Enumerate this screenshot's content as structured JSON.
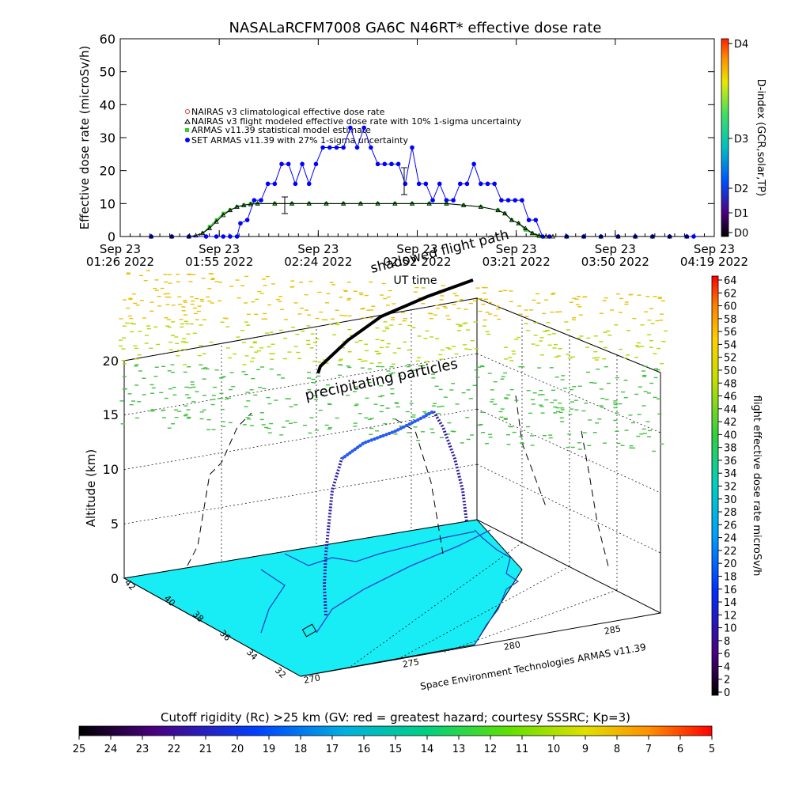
{
  "title": "NASALaRCFM7008  GA6C N46RT* effective dose rate",
  "top_chart": {
    "ylabel": "Effective dose rate (microSv/h)",
    "xlabel": "UT time",
    "y_ticks": [
      "0",
      "10",
      "20",
      "30",
      "40",
      "50",
      "60"
    ],
    "x_ticks": [
      {
        "line1": "Sep 23",
        "line2": "01:26 2022"
      },
      {
        "line1": "Sep 23",
        "line2": "01:55 2022"
      },
      {
        "line1": "Sep 23",
        "line2": "02:24 2022"
      },
      {
        "line1": "Sep 23",
        "line2": "02:52 2022"
      },
      {
        "line1": "Sep 23",
        "line2": "03:21 2022"
      },
      {
        "line1": "Sep 23",
        "line2": "03:50 2022"
      },
      {
        "line1": "Sep 23",
        "line2": "04:19 2022"
      }
    ],
    "legend": [
      "NAIRAS v3 climatological effective dose rate",
      "NAIRAS v3 flight modeled effective dose rate with 10% 1-sigma uncertainty",
      "ARMAS v11.39 statistical model estimate",
      "SET ARMAS v11.39 with 27% 1-sigma uncertainty"
    ],
    "dindex_label": "D-index (GCR,solar,TP)",
    "dindex_ticks": [
      "D0",
      "D1",
      "D2",
      "D3",
      "D4"
    ],
    "annotation": "shadowed flight path"
  },
  "chart_data": [
    {
      "type": "scatter",
      "title": "NASALaRCFM7008  GA6C N46RT* effective dose rate",
      "xlabel": "UT time",
      "ylabel": "Effective dose rate (microSv/h)",
      "ylim": [
        0,
        60
      ],
      "xlim": [
        "01:26",
        "04:19"
      ],
      "x_unit": "minutes after 01:26 UT",
      "series": [
        {
          "name": "SET ARMAS v11.39 with 27% 1-sigma uncertainty",
          "color": "#0000ff",
          "x": [
            9,
            15,
            20,
            25,
            28,
            30,
            32,
            34,
            35,
            37,
            39,
            41,
            43,
            45,
            47,
            49,
            51,
            53,
            55,
            57,
            59,
            61,
            63,
            65,
            67,
            69,
            71,
            73,
            75,
            77,
            79,
            81,
            83,
            85,
            87,
            89,
            91,
            93,
            95,
            97,
            99,
            101,
            103,
            105,
            107,
            109,
            111,
            113,
            115,
            117,
            119,
            121,
            123,
            125,
            130,
            135,
            140,
            145,
            150,
            155,
            160,
            165,
            167
          ],
          "y": [
            0,
            0,
            0,
            0,
            0,
            0,
            0,
            0,
            4,
            5,
            11,
            11,
            16,
            16,
            22,
            22,
            16,
            22,
            16,
            22,
            27,
            27,
            27,
            27,
            33,
            27,
            33,
            27,
            22,
            22,
            22,
            22,
            16,
            27,
            16,
            16,
            11,
            16,
            11,
            11,
            16,
            16,
            22,
            16,
            16,
            16,
            11,
            11,
            11,
            11,
            5,
            5,
            0,
            0,
            0,
            0,
            0,
            0,
            0,
            0,
            0,
            0,
            0
          ]
        },
        {
          "name": "ARMAS v11.39 statistical model estimate",
          "color": "#00c000",
          "x": [
            24,
            26,
            28,
            30,
            32,
            34,
            36,
            38,
            40,
            45,
            50,
            55,
            60,
            65,
            70,
            75,
            80,
            85,
            90,
            95,
            100,
            105,
            110,
            112,
            114,
            116,
            118,
            120,
            122
          ],
          "y": [
            1,
            3,
            5,
            7,
            8,
            9,
            9.5,
            10,
            10,
            10,
            10,
            10,
            10,
            10,
            10,
            10,
            10,
            10,
            10,
            10,
            9.5,
            9,
            8,
            7,
            5,
            4,
            2,
            1,
            0
          ]
        },
        {
          "name": "NAIRAS v3 flight modeled effective dose rate with 10% 1-sigma uncertainty",
          "color": "#000000",
          "x": [
            9,
            15,
            20,
            22,
            24,
            26,
            28,
            30,
            32,
            34,
            36,
            38,
            40,
            45,
            50,
            55,
            60,
            65,
            70,
            75,
            80,
            85,
            90,
            95,
            100,
            105,
            110,
            112,
            114,
            116,
            118,
            120,
            122,
            124,
            126,
            130,
            135,
            140,
            145,
            150,
            155,
            160,
            165
          ],
          "y": [
            0,
            0,
            0,
            0.3,
            1,
            2.5,
            4.5,
            6.5,
            8,
            9,
            9.5,
            9.8,
            10,
            10,
            10,
            10,
            10,
            10,
            10,
            10,
            10,
            10,
            10,
            10,
            9.5,
            9,
            8,
            7,
            5,
            4,
            2.5,
            1,
            0.3,
            0,
            0,
            0,
            0,
            0,
            0,
            0,
            0,
            0,
            0
          ]
        }
      ]
    },
    {
      "type": "scatter",
      "title": "",
      "xlabel": "",
      "ylabel": "Altitude (km)",
      "z_ticks": [
        "0",
        "5",
        "10",
        "15",
        "20"
      ],
      "lat_ticks": [
        "32",
        "34",
        "36",
        "38",
        "40",
        "42"
      ],
      "lon_ticks": [
        "270",
        "275",
        "280",
        "285"
      ],
      "annotation": "precipitating particles",
      "credit": "Space Environment Technologies ARMAS v11.39",
      "colorbar_label": "flight effective dose rate microSv/h",
      "colorbar_ticks": [
        "0",
        "2",
        "4",
        "6",
        "8",
        "10",
        "12",
        "14",
        "16",
        "18",
        "20",
        "22",
        "24",
        "26",
        "28",
        "30",
        "32",
        "34",
        "36",
        "38",
        "40",
        "42",
        "44",
        "46",
        "48",
        "50",
        "52",
        "54",
        "56",
        "58",
        "60",
        "62",
        "64"
      ]
    }
  ],
  "rigidity_bar": {
    "title": "Cutoff rigidity (Rc) >25 km (GV: red = greatest hazard; courtesy SSSRC; Kp=3)",
    "ticks": [
      "25",
      "24",
      "23",
      "22",
      "21",
      "20",
      "19",
      "18",
      "17",
      "16",
      "15",
      "14",
      "13",
      "12",
      "11",
      "10",
      "9",
      "8",
      "7",
      "6",
      "5"
    ]
  }
}
